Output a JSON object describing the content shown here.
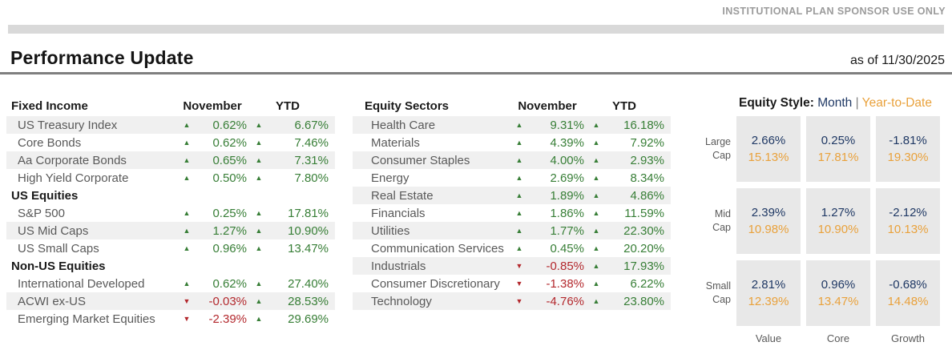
{
  "page": {
    "notice": "INSTITUTIONAL PLAN SPONSOR USE ONLY",
    "title": "Performance Update",
    "as_of": "as of 11/30/2025"
  },
  "columns": {
    "november": "November",
    "ytd": "YTD"
  },
  "icons": {
    "up": "▲",
    "down": "▼"
  },
  "colors": {
    "positive": "#377E36",
    "negative": "#B3282D",
    "month": "#1F3864",
    "year_to_date": "#E9A13B"
  },
  "tables": {
    "left": {
      "title": "Fixed Income",
      "rows": [
        {
          "type": "data",
          "label": "US Treasury Index",
          "nov": "0.62%",
          "nov_dir": "up",
          "ytd": "6.67%",
          "ytd_dir": "up",
          "striped": true
        },
        {
          "type": "data",
          "label": "Core Bonds",
          "nov": "0.62%",
          "nov_dir": "up",
          "ytd": "7.46%",
          "ytd_dir": "up",
          "striped": false
        },
        {
          "type": "data",
          "label": "Aa Corporate Bonds",
          "nov": "0.65%",
          "nov_dir": "up",
          "ytd": "7.31%",
          "ytd_dir": "up",
          "striped": true
        },
        {
          "type": "data",
          "label": "High Yield Corporate",
          "nov": "0.50%",
          "nov_dir": "up",
          "ytd": "7.80%",
          "ytd_dir": "up",
          "striped": false
        },
        {
          "type": "section",
          "label": "US Equities"
        },
        {
          "type": "data",
          "label": "S&P 500",
          "nov": "0.25%",
          "nov_dir": "up",
          "ytd": "17.81%",
          "ytd_dir": "up",
          "striped": false
        },
        {
          "type": "data",
          "label": "US Mid Caps",
          "nov": "1.27%",
          "nov_dir": "up",
          "ytd": "10.90%",
          "ytd_dir": "up",
          "striped": true
        },
        {
          "type": "data",
          "label": "US Small Caps",
          "nov": "0.96%",
          "nov_dir": "up",
          "ytd": "13.47%",
          "ytd_dir": "up",
          "striped": false
        },
        {
          "type": "section",
          "label": "Non-US Equities"
        },
        {
          "type": "data",
          "label": "International Developed",
          "nov": "0.62%",
          "nov_dir": "up",
          "ytd": "27.40%",
          "ytd_dir": "up",
          "striped": false
        },
        {
          "type": "data",
          "label": "ACWI ex-US",
          "nov": "-0.03%",
          "nov_dir": "down",
          "ytd": "28.53%",
          "ytd_dir": "up",
          "striped": true
        },
        {
          "type": "data",
          "label": "Emerging Market Equities",
          "nov": "-2.39%",
          "nov_dir": "down",
          "ytd": "29.69%",
          "ytd_dir": "up",
          "striped": false
        }
      ]
    },
    "mid": {
      "title": "Equity Sectors",
      "rows": [
        {
          "type": "data",
          "label": "Health Care",
          "nov": "9.31%",
          "nov_dir": "up",
          "ytd": "16.18%",
          "ytd_dir": "up",
          "striped": true
        },
        {
          "type": "data",
          "label": "Materials",
          "nov": "4.39%",
          "nov_dir": "up",
          "ytd": "7.92%",
          "ytd_dir": "up",
          "striped": false
        },
        {
          "type": "data",
          "label": "Consumer Staples",
          "nov": "4.00%",
          "nov_dir": "up",
          "ytd": "2.93%",
          "ytd_dir": "up",
          "striped": true
        },
        {
          "type": "data",
          "label": "Energy",
          "nov": "2.69%",
          "nov_dir": "up",
          "ytd": "8.34%",
          "ytd_dir": "up",
          "striped": false
        },
        {
          "type": "data",
          "label": "Real Estate",
          "nov": "1.89%",
          "nov_dir": "up",
          "ytd": "4.86%",
          "ytd_dir": "up",
          "striped": true
        },
        {
          "type": "data",
          "label": "Financials",
          "nov": "1.86%",
          "nov_dir": "up",
          "ytd": "11.59%",
          "ytd_dir": "up",
          "striped": false
        },
        {
          "type": "data",
          "label": "Utilities",
          "nov": "1.77%",
          "nov_dir": "up",
          "ytd": "22.30%",
          "ytd_dir": "up",
          "striped": true
        },
        {
          "type": "data",
          "label": "Communication Services",
          "nov": "0.45%",
          "nov_dir": "up",
          "ytd": "20.20%",
          "ytd_dir": "up",
          "striped": false
        },
        {
          "type": "data",
          "label": "Industrials",
          "nov": "-0.85%",
          "nov_dir": "down",
          "ytd": "17.93%",
          "ytd_dir": "up",
          "striped": true
        },
        {
          "type": "data",
          "label": "Consumer Discretionary",
          "nov": "-1.38%",
          "nov_dir": "down",
          "ytd": "6.22%",
          "ytd_dir": "up",
          "striped": false
        },
        {
          "type": "data",
          "label": "Technology",
          "nov": "-4.76%",
          "nov_dir": "down",
          "ytd": "23.80%",
          "ytd_dir": "up",
          "striped": true
        }
      ]
    }
  },
  "style_box": {
    "title": "Equity Style:",
    "legend_month": "Month",
    "legend_sep": "|",
    "legend_ytd": "Year-to-Date",
    "columns": [
      "Value",
      "Core",
      "Growth"
    ],
    "rows": [
      {
        "label_line1": "Large",
        "label_line2": "Cap",
        "cells": [
          {
            "month": "2.66%",
            "ytd": "15.13%"
          },
          {
            "month": "0.25%",
            "ytd": "17.81%"
          },
          {
            "month": "-1.81%",
            "ytd": "19.30%"
          }
        ]
      },
      {
        "label_line1": "Mid",
        "label_line2": "Cap",
        "cells": [
          {
            "month": "2.39%",
            "ytd": "10.98%"
          },
          {
            "month": "1.27%",
            "ytd": "10.90%"
          },
          {
            "month": "-2.12%",
            "ytd": "10.13%"
          }
        ]
      },
      {
        "label_line1": "Small",
        "label_line2": "Cap",
        "cells": [
          {
            "month": "2.81%",
            "ytd": "12.39%"
          },
          {
            "month": "0.96%",
            "ytd": "13.47%"
          },
          {
            "month": "-0.68%",
            "ytd": "14.48%"
          }
        ]
      }
    ]
  }
}
